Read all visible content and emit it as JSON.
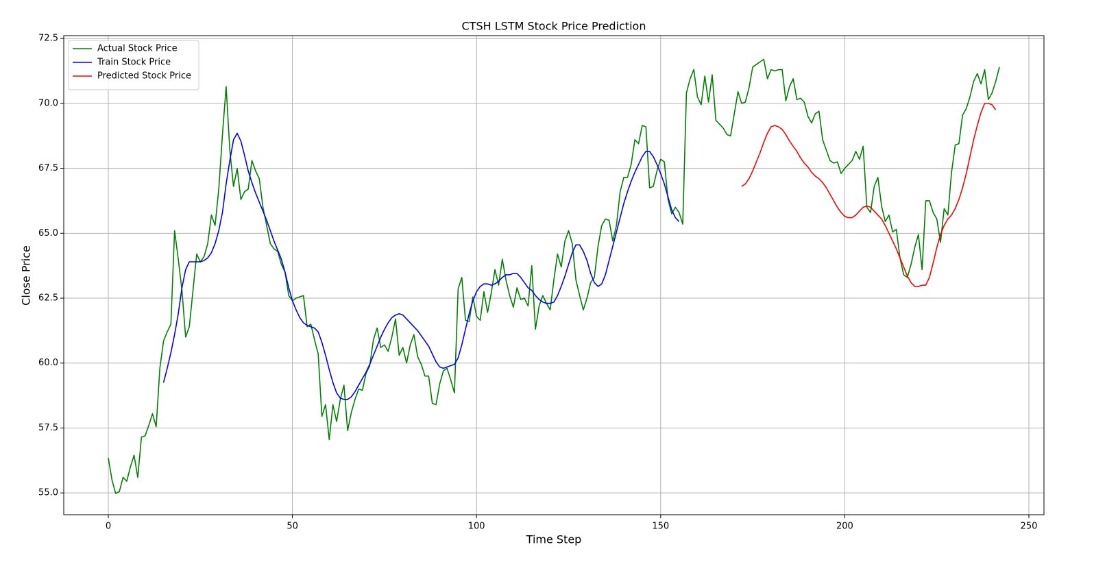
{
  "chart_data": {
    "type": "line",
    "title": "CTSH LSTM Stock Price Prediction",
    "x_label": "Time Step",
    "y_label": "Close Price",
    "x": [
      0,
      1,
      2,
      3,
      4,
      5,
      6,
      7,
      8,
      9,
      10,
      11,
      12,
      13,
      14,
      15,
      16,
      17,
      18,
      19,
      20,
      21,
      22,
      23,
      24,
      25,
      26,
      27,
      28,
      29,
      30,
      31,
      32,
      33,
      34,
      35,
      36,
      37,
      38,
      39,
      40,
      41,
      42,
      43,
      44,
      45,
      46,
      47,
      48,
      49,
      50,
      51,
      52,
      53,
      54,
      55,
      56,
      57,
      58,
      59,
      60,
      61,
      62,
      63,
      64,
      65,
      66,
      67,
      68,
      69,
      70,
      71,
      72,
      73,
      74,
      75,
      76,
      77,
      78,
      79,
      80,
      81,
      82,
      83,
      84,
      85,
      86,
      87,
      88,
      89,
      90,
      91,
      92,
      93,
      94,
      95,
      96,
      97,
      98,
      99,
      100,
      101,
      102,
      103,
      104,
      105,
      106,
      107,
      108,
      109,
      110,
      111,
      112,
      113,
      114,
      115,
      116,
      117,
      118,
      119,
      120,
      121,
      122,
      123,
      124,
      125,
      126,
      127,
      128,
      129,
      130,
      131,
      132,
      133,
      134,
      135,
      136,
      137,
      138,
      139,
      140,
      141,
      142,
      143,
      144,
      145,
      146,
      147,
      148,
      149,
      150,
      151,
      152,
      153,
      154,
      155,
      156,
      157,
      158,
      159,
      160,
      161,
      162,
      163,
      164,
      165,
      166,
      167,
      168,
      169,
      170,
      171,
      172,
      173,
      174,
      175,
      176,
      177,
      178,
      179,
      180,
      181,
      182,
      183,
      184,
      185,
      186,
      187,
      188,
      189,
      190,
      191,
      192,
      193,
      194,
      195,
      196,
      197,
      198,
      199,
      200,
      201,
      202,
      203,
      204,
      205,
      206,
      207,
      208,
      209,
      210,
      211,
      212,
      213,
      214,
      215,
      216,
      217,
      218,
      219,
      220,
      221,
      222,
      223,
      224,
      225,
      226,
      227,
      228,
      229,
      230,
      231,
      232,
      233,
      234,
      235,
      236,
      237,
      238,
      239,
      240,
      241,
      242
    ],
    "series": [
      {
        "name": "Actual Stock Price",
        "color": "#008000",
        "values": [
          56.35,
          55.5,
          54.98,
          55.05,
          55.6,
          55.45,
          56.0,
          56.45,
          55.6,
          57.15,
          57.2,
          57.6,
          58.05,
          57.55,
          59.8,
          60.85,
          61.2,
          61.5,
          65.1,
          64.0,
          62.8,
          61.0,
          61.4,
          62.8,
          64.2,
          63.9,
          64.1,
          64.6,
          65.7,
          65.3,
          66.7,
          68.8,
          70.65,
          68.2,
          66.8,
          67.5,
          66.3,
          66.6,
          66.7,
          67.8,
          67.4,
          67.1,
          66.0,
          65.3,
          64.6,
          64.4,
          64.3,
          63.8,
          63.5,
          62.6,
          62.4,
          62.5,
          62.55,
          62.6,
          61.4,
          61.5,
          60.9,
          60.35,
          57.95,
          58.4,
          57.05,
          58.4,
          57.75,
          58.6,
          59.15,
          57.4,
          58.1,
          58.6,
          59.0,
          58.95,
          59.6,
          59.9,
          60.9,
          61.35,
          60.6,
          60.7,
          60.45,
          61.0,
          61.7,
          60.3,
          60.6,
          60.0,
          60.7,
          61.1,
          60.25,
          59.95,
          59.5,
          59.5,
          58.45,
          58.4,
          59.2,
          59.7,
          59.8,
          59.35,
          58.85,
          62.85,
          63.3,
          61.65,
          61.6,
          62.55,
          61.8,
          61.65,
          62.75,
          61.95,
          62.7,
          63.6,
          63.0,
          64.0,
          63.2,
          62.6,
          62.15,
          62.9,
          62.45,
          62.5,
          62.2,
          63.75,
          61.3,
          62.2,
          62.6,
          62.3,
          62.05,
          63.2,
          64.2,
          63.7,
          64.7,
          65.1,
          64.6,
          63.2,
          62.6,
          62.05,
          62.5,
          63.1,
          63.3,
          64.5,
          65.3,
          65.55,
          65.5,
          64.7,
          65.3,
          66.6,
          67.15,
          67.15,
          67.65,
          68.6,
          68.45,
          69.15,
          69.1,
          66.75,
          66.8,
          67.4,
          67.85,
          67.75,
          66.3,
          65.75,
          66.0,
          65.8,
          65.35,
          70.4,
          70.95,
          71.3,
          70.25,
          69.95,
          71.05,
          70.05,
          71.1,
          69.35,
          69.2,
          69.05,
          68.8,
          68.75,
          69.6,
          70.45,
          70.0,
          70.05,
          70.6,
          71.4,
          71.5,
          71.6,
          71.7,
          70.95,
          71.3,
          71.25,
          71.3,
          71.3,
          70.1,
          70.65,
          70.95,
          70.15,
          70.2,
          70.05,
          69.5,
          69.25,
          69.6,
          69.7,
          68.6,
          68.2,
          67.8,
          67.7,
          67.75,
          67.3,
          67.5,
          67.65,
          67.8,
          68.15,
          67.85,
          68.35,
          66.0,
          65.8,
          66.8,
          67.15,
          66.05,
          65.45,
          65.7,
          65.05,
          65.15,
          64.05,
          63.4,
          63.3,
          63.8,
          64.45,
          64.95,
          63.6,
          66.25,
          66.25,
          65.8,
          65.55,
          64.65,
          65.95,
          65.7,
          67.35,
          68.4,
          68.45,
          69.55,
          69.8,
          70.25,
          70.85,
          71.15,
          70.75,
          71.3,
          70.15,
          70.4,
          70.85,
          71.4
        ]
      },
      {
        "name": "Train Stock Price",
        "color": "#0000ff",
        "values": [
          null,
          null,
          null,
          null,
          null,
          null,
          null,
          null,
          null,
          null,
          null,
          null,
          null,
          null,
          null,
          59.25,
          59.8,
          60.4,
          61.1,
          61.9,
          62.9,
          63.6,
          63.9,
          63.9,
          63.9,
          63.9,
          63.95,
          64.05,
          64.25,
          64.6,
          65.1,
          65.8,
          66.9,
          67.8,
          68.6,
          68.85,
          68.55,
          68.0,
          67.4,
          66.95,
          66.55,
          66.2,
          65.85,
          65.5,
          65.1,
          64.7,
          64.35,
          64.0,
          63.5,
          62.9,
          62.4,
          62.05,
          61.75,
          61.55,
          61.45,
          61.4,
          61.35,
          61.2,
          60.8,
          60.3,
          59.75,
          59.25,
          58.85,
          58.65,
          58.6,
          58.6,
          58.7,
          58.9,
          59.15,
          59.4,
          59.65,
          59.95,
          60.3,
          60.65,
          61.0,
          61.3,
          61.55,
          61.75,
          61.85,
          61.9,
          61.85,
          61.7,
          61.55,
          61.4,
          61.25,
          61.05,
          60.85,
          60.65,
          60.35,
          60.05,
          59.85,
          59.8,
          59.85,
          59.9,
          59.95,
          60.2,
          60.7,
          61.3,
          61.9,
          62.4,
          62.75,
          62.95,
          63.05,
          63.05,
          63.0,
          63.05,
          63.15,
          63.3,
          63.4,
          63.4,
          63.45,
          63.45,
          63.3,
          63.1,
          62.9,
          62.8,
          62.6,
          62.45,
          62.35,
          62.3,
          62.3,
          62.35,
          62.6,
          62.95,
          63.35,
          63.8,
          64.25,
          64.55,
          64.55,
          64.3,
          63.95,
          63.45,
          63.1,
          62.95,
          63.05,
          63.4,
          63.95,
          64.5,
          65.05,
          65.6,
          66.15,
          66.6,
          67.0,
          67.35,
          67.65,
          67.95,
          68.15,
          68.15,
          67.95,
          67.65,
          67.3,
          66.9,
          66.4,
          65.9,
          65.6,
          65.45,
          null,
          null,
          null,
          null,
          null,
          null,
          null,
          null,
          null,
          null,
          null,
          null,
          null,
          null,
          null,
          null,
          null,
          null,
          null,
          null,
          null,
          null,
          null,
          null,
          null,
          null,
          null,
          null,
          null,
          null,
          null,
          null,
          null,
          null,
          null,
          null,
          null,
          null,
          null,
          null,
          null,
          null,
          null,
          null,
          null,
          null,
          null,
          null,
          null,
          null,
          null,
          null,
          null,
          null,
          null,
          null,
          null,
          null,
          null,
          null,
          null,
          null,
          null,
          null,
          null,
          null,
          null,
          null,
          null,
          null,
          null,
          null,
          null,
          null,
          null,
          null,
          null,
          null,
          null,
          null,
          null,
          null,
          null,
          null,
          null,
          null,
          null
        ]
      },
      {
        "name": "Predicted Stock Price",
        "color": "#ff0000",
        "values": [
          null,
          null,
          null,
          null,
          null,
          null,
          null,
          null,
          null,
          null,
          null,
          null,
          null,
          null,
          null,
          null,
          null,
          null,
          null,
          null,
          null,
          null,
          null,
          null,
          null,
          null,
          null,
          null,
          null,
          null,
          null,
          null,
          null,
          null,
          null,
          null,
          null,
          null,
          null,
          null,
          null,
          null,
          null,
          null,
          null,
          null,
          null,
          null,
          null,
          null,
          null,
          null,
          null,
          null,
          null,
          null,
          null,
          null,
          null,
          null,
          null,
          null,
          null,
          null,
          null,
          null,
          null,
          null,
          null,
          null,
          null,
          null,
          null,
          null,
          null,
          null,
          null,
          null,
          null,
          null,
          null,
          null,
          null,
          null,
          null,
          null,
          null,
          null,
          null,
          null,
          null,
          null,
          null,
          null,
          null,
          null,
          null,
          null,
          null,
          null,
          null,
          null,
          null,
          null,
          null,
          null,
          null,
          null,
          null,
          null,
          null,
          null,
          null,
          null,
          null,
          null,
          null,
          null,
          null,
          null,
          null,
          null,
          null,
          null,
          null,
          null,
          null,
          null,
          null,
          null,
          null,
          null,
          null,
          null,
          null,
          null,
          null,
          null,
          null,
          null,
          null,
          null,
          null,
          null,
          null,
          null,
          null,
          null,
          null,
          null,
          null,
          null,
          null,
          null,
          null,
          null,
          null,
          null,
          null,
          null,
          null,
          null,
          null,
          null,
          null,
          null,
          null,
          null,
          null,
          null,
          null,
          null,
          66.8,
          66.9,
          67.1,
          67.4,
          67.75,
          68.1,
          68.5,
          68.85,
          69.1,
          69.15,
          69.1,
          69.0,
          68.8,
          68.55,
          68.35,
          68.15,
          67.9,
          67.7,
          67.55,
          67.35,
          67.2,
          67.1,
          66.95,
          66.75,
          66.5,
          66.25,
          66.0,
          65.8,
          65.65,
          65.6,
          65.6,
          65.7,
          65.85,
          66.0,
          66.05,
          66.0,
          65.85,
          65.7,
          65.55,
          65.3,
          65.0,
          64.7,
          64.4,
          64.05,
          63.7,
          63.35,
          63.1,
          62.95,
          62.95,
          63.0,
          63.0,
          63.3,
          63.85,
          64.45,
          64.95,
          65.3,
          65.55,
          65.7,
          65.95,
          66.3,
          66.75,
          67.3,
          67.95,
          68.6,
          69.15,
          69.65,
          70.0,
          70.0,
          69.95,
          69.75,
          null
        ]
      }
    ],
    "xlim": [
      -12.1,
      254.1
    ],
    "xticks": [
      0,
      50,
      100,
      150,
      200,
      250
    ],
    "ylim": [
      54.16,
      72.61
    ],
    "yticks": [
      {
        "value": 55,
        "label": "55.0"
      },
      {
        "value": 57.5,
        "label": "57.5"
      },
      {
        "value": 60,
        "label": "60.0"
      },
      {
        "value": 62.5,
        "label": "62.5"
      },
      {
        "value": 65,
        "label": "65.0"
      },
      {
        "value": 67.5,
        "label": "67.5"
      },
      {
        "value": 70,
        "label": "70.0"
      },
      {
        "value": 72.5,
        "label": "72.5"
      }
    ],
    "grid": true,
    "legend": "upper-left"
  }
}
